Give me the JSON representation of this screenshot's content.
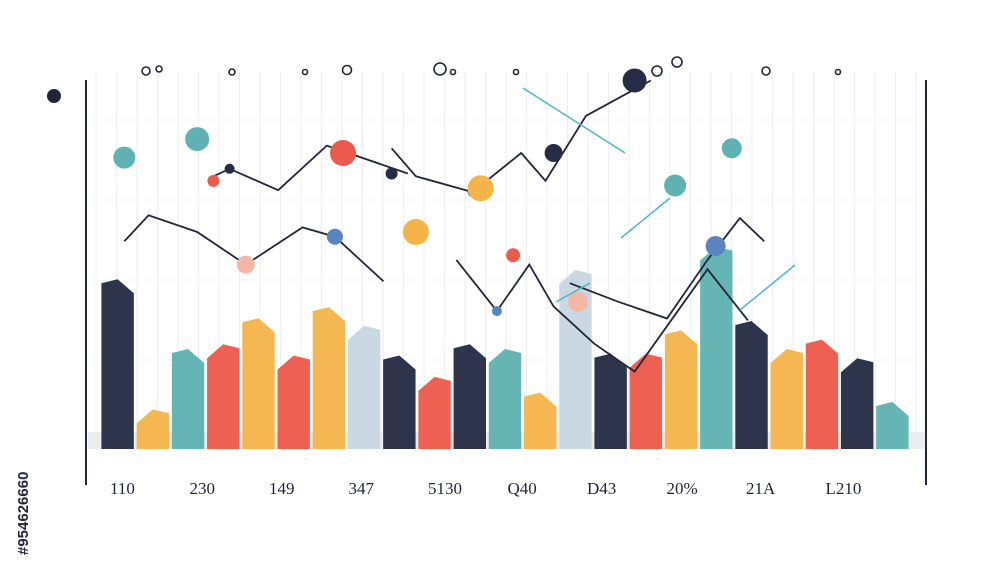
{
  "chart_data": {
    "type": "bar",
    "title": "",
    "xlabel": "",
    "ylabel": "",
    "x_tick_labels": [
      "110",
      "230",
      "149",
      "347",
      "5130",
      "Q40",
      "D43",
      "20%",
      "21A",
      "L210"
    ],
    "bars": [
      {
        "color": "#262c46",
        "value": 160
      },
      {
        "color": "#f5b44a",
        "value": 20
      },
      {
        "color": "#5fb2b1",
        "value": 85
      },
      {
        "color": "#ec5a4b",
        "value": 90
      },
      {
        "color": "#f5b44a",
        "value": 118
      },
      {
        "color": "#ec5a4b",
        "value": 78
      },
      {
        "color": "#f5b44a",
        "value": 130
      },
      {
        "color": "#c8d6e2",
        "value": 110
      },
      {
        "color": "#262c46",
        "value": 78
      },
      {
        "color": "#ec5a4b",
        "value": 55
      },
      {
        "color": "#262c46",
        "value": 90
      },
      {
        "color": "#5fb2b1",
        "value": 85
      },
      {
        "color": "#f5b44a",
        "value": 38
      },
      {
        "color": "#c8d6e2",
        "value": 170
      },
      {
        "color": "#262c46",
        "value": 80
      },
      {
        "color": "#ec5a4b",
        "value": 80
      },
      {
        "color": "#f5b44a",
        "value": 105
      },
      {
        "color": "#5fb2b1",
        "value": 195
      },
      {
        "color": "#262c46",
        "value": 115
      },
      {
        "color": "#f5b44a",
        "value": 85
      },
      {
        "color": "#ec5a4b",
        "value": 95
      },
      {
        "color": "#262c46",
        "value": 75
      },
      {
        "color": "#5fb2b1",
        "value": 28
      }
    ],
    "line_series": [
      {
        "color": "#23263a",
        "points": [
          [
            1.4,
            275
          ],
          [
            1.6,
            283
          ],
          [
            2.2,
            260
          ],
          [
            2.8,
            308
          ],
          [
            3.8,
            278
          ]
        ]
      },
      {
        "color": "#23263a",
        "points": [
          [
            0.3,
            205
          ],
          [
            0.6,
            233
          ],
          [
            1.2,
            215
          ],
          [
            1.8,
            180
          ],
          [
            2.5,
            220
          ],
          [
            2.9,
            210
          ],
          [
            3.5,
            162
          ]
        ]
      },
      {
        "color": "#23263a",
        "points": [
          [
            3.6,
            305
          ],
          [
            3.9,
            275
          ],
          [
            4.6,
            258
          ],
          [
            5.2,
            300
          ],
          [
            5.5,
            270
          ],
          [
            6.0,
            340
          ],
          [
            6.8,
            378
          ]
        ]
      },
      {
        "color": "#23263a",
        "points": [
          [
            4.4,
            185
          ],
          [
            4.9,
            130
          ],
          [
            5.3,
            180
          ],
          [
            5.6,
            135
          ],
          [
            6.1,
            95
          ],
          [
            6.6,
            65
          ],
          [
            7.5,
            175
          ],
          [
            8.0,
            120
          ]
        ]
      },
      {
        "color": "#23263a",
        "points": [
          [
            5.8,
            160
          ],
          [
            6.4,
            140
          ],
          [
            7.0,
            122
          ],
          [
            7.5,
            185
          ],
          [
            7.9,
            230
          ],
          [
            8.2,
            205
          ]
        ]
      }
    ],
    "scatter_points": [
      {
        "x": 0.3,
        "y": 295,
        "color": "#5fb2b1",
        "size": 11
      },
      {
        "x": 1.2,
        "y": 315,
        "color": "#5fb2b1",
        "size": 12
      },
      {
        "x": 1.4,
        "y": 270,
        "color": "#ec5a4b",
        "size": 6
      },
      {
        "x": 1.6,
        "y": 283,
        "color": "#262c46",
        "size": 5
      },
      {
        "x": 1.8,
        "y": 180,
        "color": "#f4b7a6",
        "size": 9
      },
      {
        "x": 3.0,
        "y": 300,
        "color": "#ec5a4b",
        "size": 13
      },
      {
        "x": 2.9,
        "y": 210,
        "color": "#5a84bf",
        "size": 8
      },
      {
        "x": 3.6,
        "y": 278,
        "color": "#262c46",
        "size": 6
      },
      {
        "x": 3.9,
        "y": 215,
        "color": "#f5b44a",
        "size": 13
      },
      {
        "x": 4.6,
        "y": 258,
        "color": "#5a84bf",
        "size": 5
      },
      {
        "x": 4.7,
        "y": 262,
        "color": "#f5b44a",
        "size": 13
      },
      {
        "x": 4.9,
        "y": 130,
        "color": "#5a84bf",
        "size": 5
      },
      {
        "x": 5.1,
        "y": 190,
        "color": "#ec5a4b",
        "size": 7
      },
      {
        "x": 5.6,
        "y": 300,
        "color": "#262c46",
        "size": 9
      },
      {
        "x": 5.9,
        "y": 140,
        "color": "#f4b7a6",
        "size": 10
      },
      {
        "x": 6.6,
        "y": 378,
        "color": "#262c46",
        "size": 12
      },
      {
        "x": 7.1,
        "y": 265,
        "color": "#5fb2b1",
        "size": 11
      },
      {
        "x": 7.6,
        "y": 200,
        "color": "#5a84bf",
        "size": 10
      },
      {
        "x": 7.8,
        "y": 305,
        "color": "#5fb2b1",
        "size": 10
      }
    ],
    "ylim": [
      0,
      400
    ],
    "grid": true,
    "legend": "none"
  },
  "watermark": {
    "side_text": "#954626660"
  }
}
